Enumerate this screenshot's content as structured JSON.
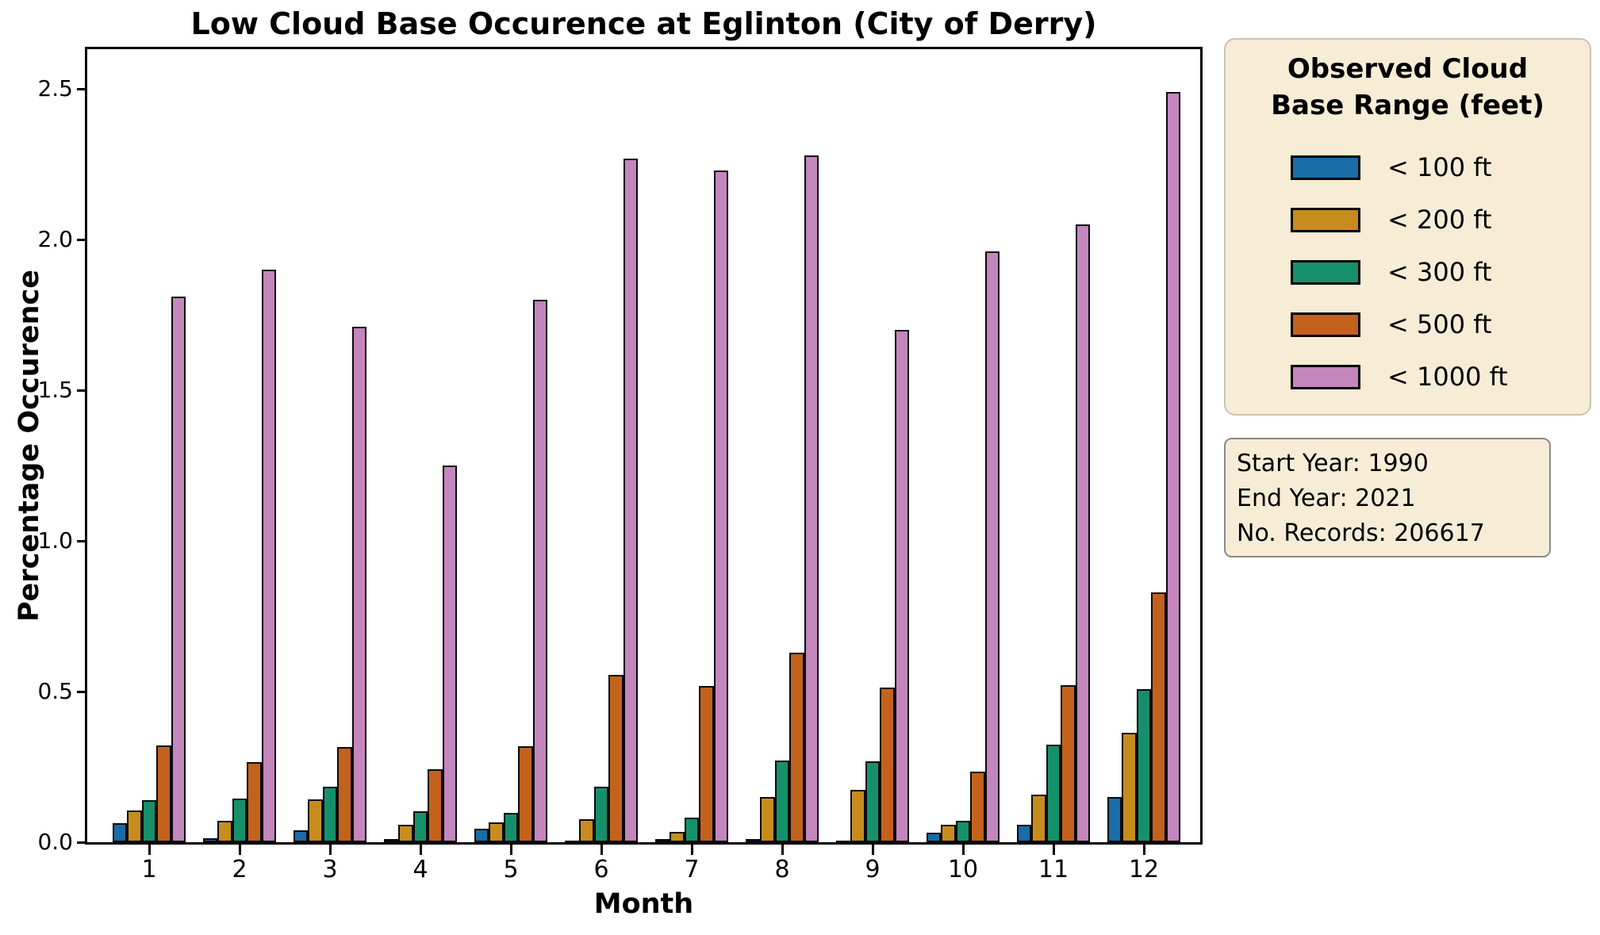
{
  "title": "Low Cloud Base Occurence at Eglinton (City of Derry)",
  "axes": {
    "x_label": "Month",
    "y_label": "Percentage Occurence",
    "y_ticks": [
      "0.0",
      "0.5",
      "1.0",
      "1.5",
      "2.0",
      "2.5"
    ],
    "y_tick_values": [
      0.0,
      0.5,
      1.0,
      1.5,
      2.0,
      2.5
    ],
    "x_ticks": [
      "1",
      "2",
      "3",
      "4",
      "5",
      "6",
      "7",
      "8",
      "9",
      "10",
      "11",
      "12"
    ]
  },
  "legend": {
    "title_line1": "Observed Cloud",
    "title_line2": "Base Range (feet)",
    "items": [
      {
        "label": "< 100 ft",
        "color": "#1a6ca6"
      },
      {
        "label": "< 200 ft",
        "color": "#c78c1e"
      },
      {
        "label": "< 300 ft",
        "color": "#16906b"
      },
      {
        "label": "< 500 ft",
        "color": "#c2621d"
      },
      {
        "label": "< 1000 ft",
        "color": "#c386bd"
      }
    ]
  },
  "info_box": {
    "lines": [
      "Start Year: 1990",
      "End Year: 2021",
      "No. Records: 206617"
    ]
  },
  "colors": {
    "bar_edge": "#0a0a0a",
    "box_background": "#f7edd7",
    "legend_border": "#c9c2ae",
    "info_border": "#8a8a8a"
  },
  "chart_data": {
    "type": "bar",
    "title": "Low Cloud Base Occurence at Eglinton (City of Derry)",
    "xlabel": "Month",
    "ylabel": "Percentage Occurence",
    "categories": [
      1,
      2,
      3,
      4,
      5,
      6,
      7,
      8,
      9,
      10,
      11,
      12
    ],
    "series": [
      {
        "name": "< 100 ft",
        "color": "#1a6ca6",
        "values": [
          0.063,
          0.013,
          0.039,
          0.009,
          0.046,
          0.004,
          0.008,
          0.007,
          0.006,
          0.032,
          0.057,
          0.151
        ]
      },
      {
        "name": "< 200 ft",
        "color": "#c78c1e",
        "values": [
          0.106,
          0.07,
          0.143,
          0.059,
          0.066,
          0.076,
          0.033,
          0.15,
          0.175,
          0.057,
          0.157,
          0.362
        ]
      },
      {
        "name": "< 300 ft",
        "color": "#16906b",
        "values": [
          0.14,
          0.144,
          0.185,
          0.103,
          0.098,
          0.185,
          0.082,
          0.272,
          0.268,
          0.07,
          0.325,
          0.508
        ]
      },
      {
        "name": "< 500 ft",
        "color": "#c2621d",
        "values": [
          0.322,
          0.267,
          0.316,
          0.242,
          0.318,
          0.556,
          0.518,
          0.63,
          0.512,
          0.235,
          0.522,
          0.828
        ]
      },
      {
        "name": "< 1000 ft",
        "color": "#c386bd",
        "values": [
          1.81,
          1.9,
          1.71,
          1.25,
          1.8,
          2.27,
          2.23,
          2.28,
          1.7,
          1.96,
          2.05,
          2.49
        ]
      }
    ],
    "ylim": [
      0.0,
      2.632
    ],
    "grid": false,
    "legend_title": "Observed Cloud Base Range (feet)",
    "legend_position": "outside upper right",
    "annotation_box": "Start Year: 1990 / End Year: 2021 / No. Records: 206617"
  }
}
